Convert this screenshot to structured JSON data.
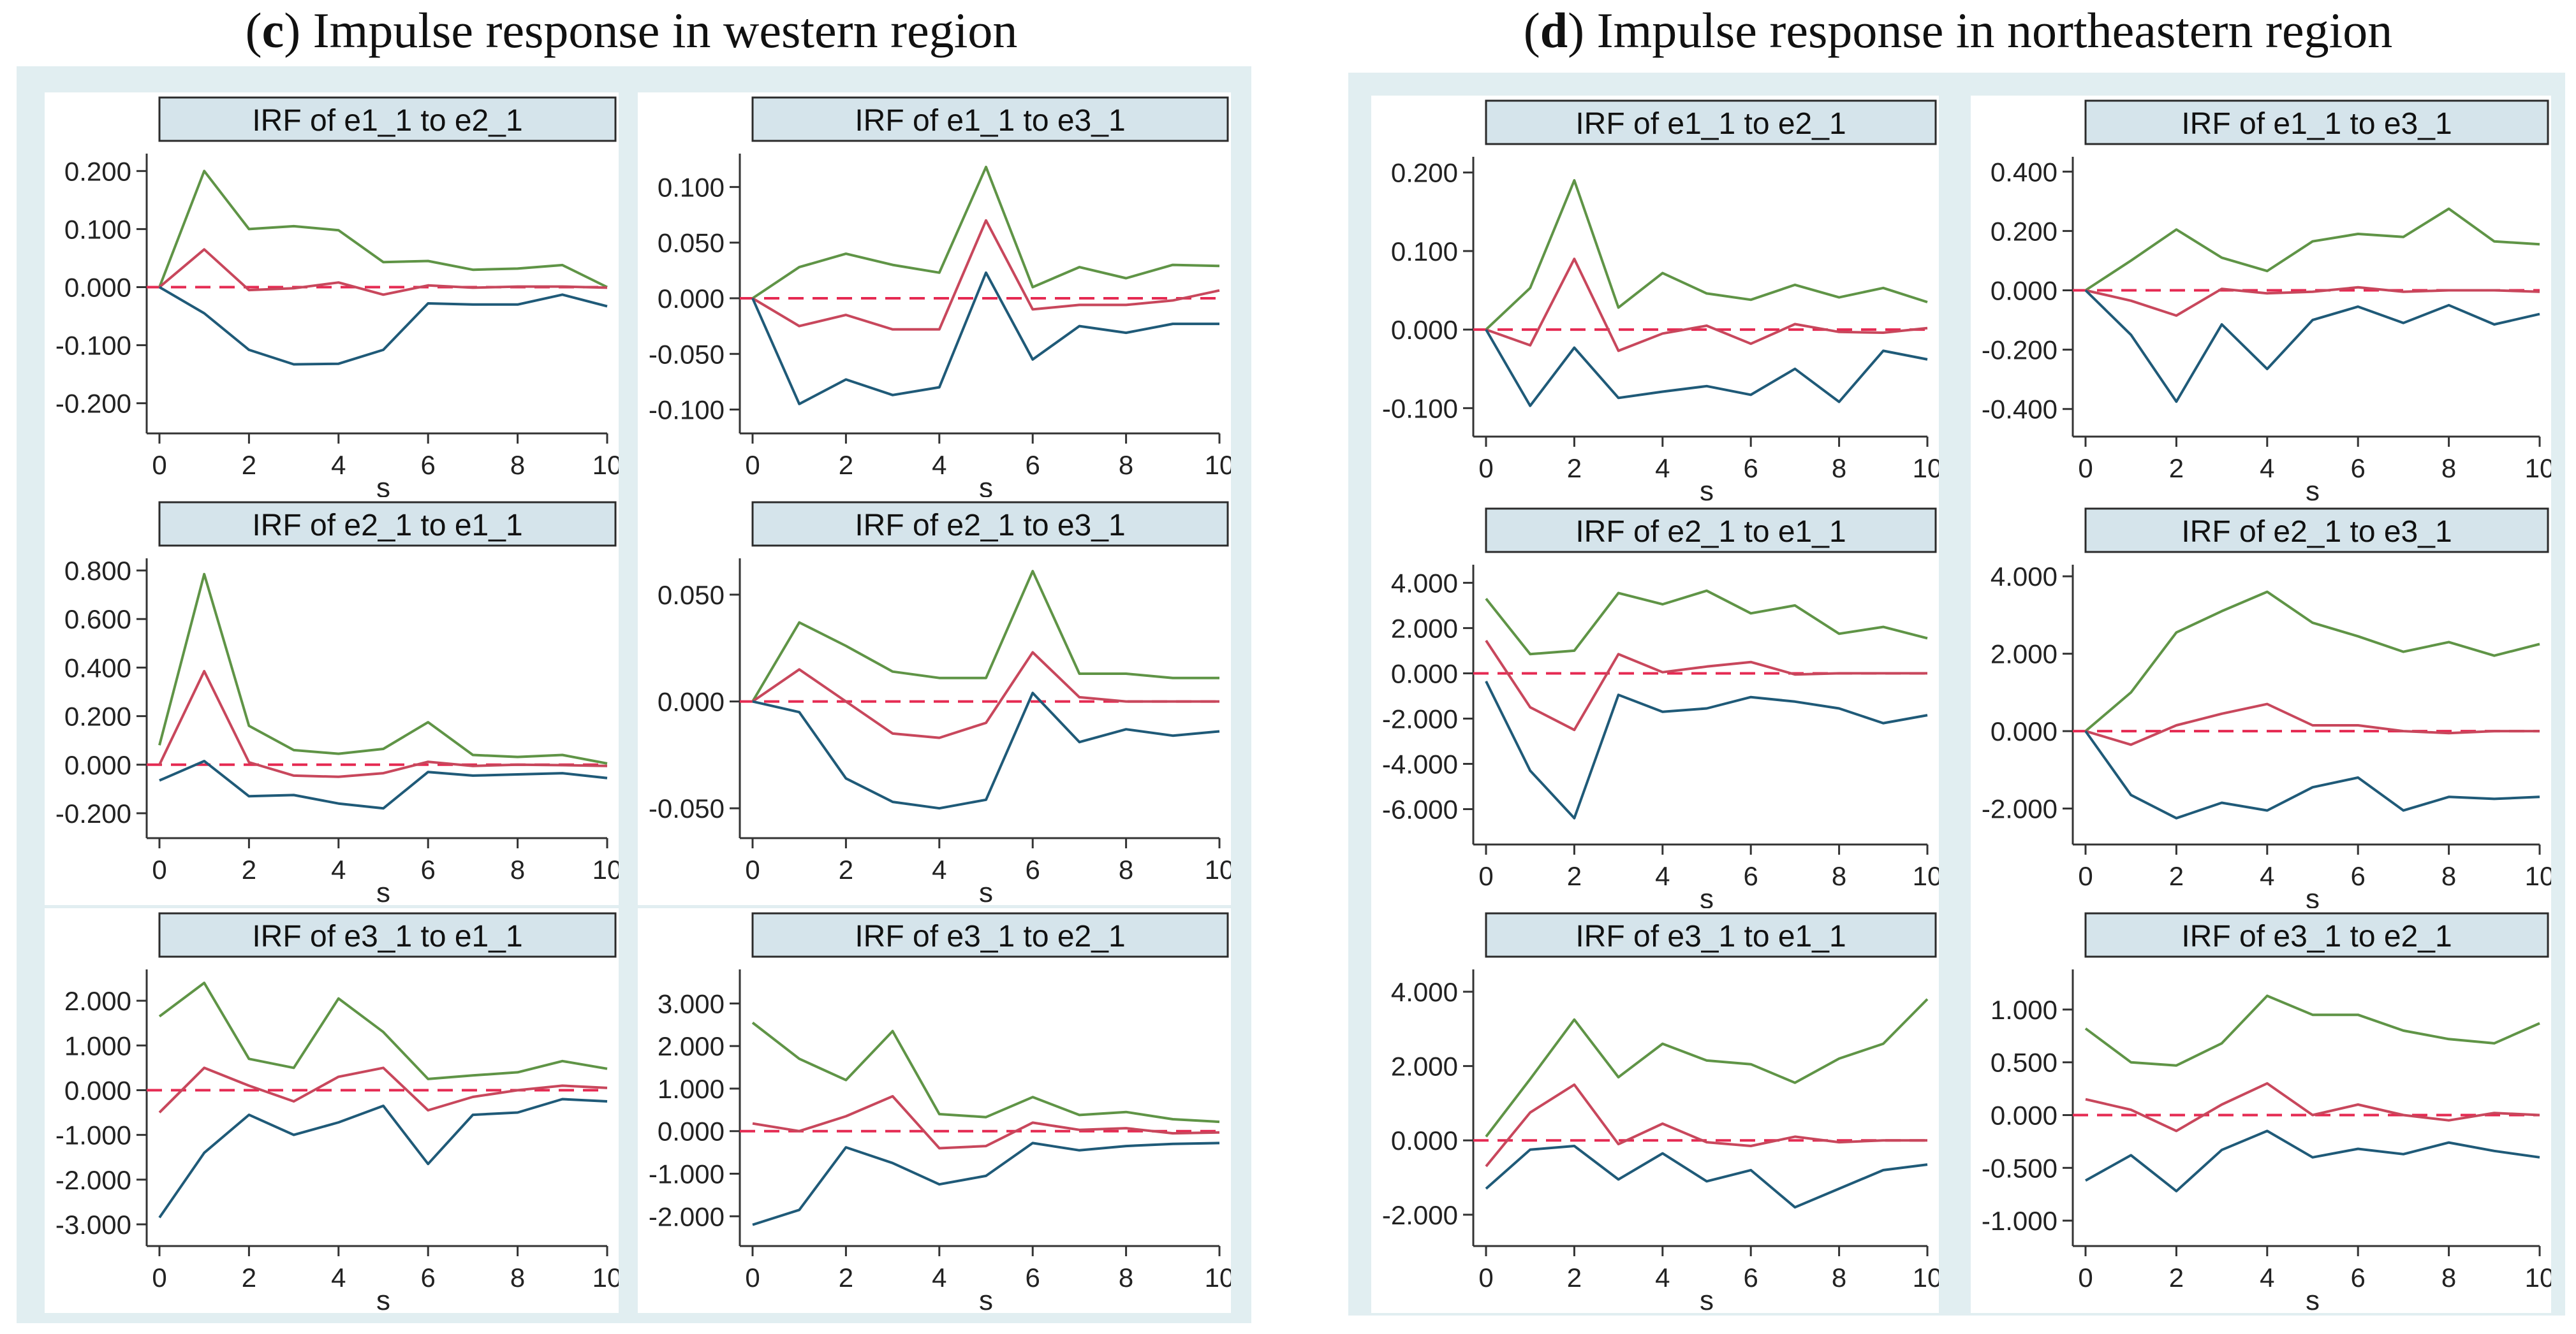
{
  "figure": {
    "panels": [
      {
        "id": "c",
        "letter": "c",
        "title": "Impulse response in western region"
      },
      {
        "id": "d",
        "letter": "d",
        "title": "Impulse response in northeastern region"
      }
    ]
  },
  "colors": {
    "panel_bg": "#e1eef1",
    "subplot_bg": "#ffffff",
    "header_bg": "#d5e4eb",
    "upper": "#5f9446",
    "irf": "#c8475c",
    "lower": "#1f5a78",
    "zero_line": "#e52a52",
    "axis": "#333333"
  },
  "chart_data": [
    {
      "id": "c-1",
      "panel": "c",
      "type": "line",
      "title": "IRF of e1_1 to e2_1",
      "xlabel": "s",
      "ylabel": "",
      "x": [
        0,
        1,
        2,
        3,
        4,
        5,
        6,
        7,
        8,
        9,
        10
      ],
      "xticks": [
        "0",
        "2",
        "4",
        "6",
        "8",
        "10"
      ],
      "ylim": [
        -0.23,
        0.23
      ],
      "yticks": [
        "-0.200",
        "-0.100",
        "0.000",
        "0.100",
        "0.200"
      ],
      "series": [
        {
          "name": "upper",
          "values": [
            0,
            0.2,
            0.1,
            0.105,
            0.098,
            0.043,
            0.045,
            0.03,
            0.032,
            0.038,
            0.0
          ]
        },
        {
          "name": "irf",
          "values": [
            0,
            0.065,
            -0.005,
            -0.002,
            0.008,
            -0.013,
            0.003,
            -0.001,
            0.001,
            0.001,
            -0.001
          ]
        },
        {
          "name": "lower",
          "values": [
            0,
            -0.045,
            -0.108,
            -0.133,
            -0.132,
            -0.108,
            -0.028,
            -0.03,
            -0.03,
            -0.013,
            -0.033
          ]
        }
      ]
    },
    {
      "id": "c-2",
      "panel": "c",
      "type": "line",
      "title": "IRF of e1_1 to e3_1",
      "xlabel": "s",
      "ylabel": "",
      "x": [
        0,
        1,
        2,
        3,
        4,
        5,
        6,
        7,
        8,
        9,
        10
      ],
      "xticks": [
        "0",
        "2",
        "4",
        "6",
        "8",
        "10"
      ],
      "ylim": [
        -0.11,
        0.13
      ],
      "yticks": [
        "-0.100",
        "-0.050",
        "0.000",
        "0.050",
        "0.100"
      ],
      "series": [
        {
          "name": "upper",
          "values": [
            0,
            0.028,
            0.04,
            0.03,
            0.023,
            0.118,
            0.01,
            0.028,
            0.018,
            0.03,
            0.029
          ]
        },
        {
          "name": "irf",
          "values": [
            0,
            -0.025,
            -0.015,
            -0.028,
            -0.028,
            0.07,
            -0.01,
            -0.006,
            -0.006,
            -0.002,
            0.007
          ]
        },
        {
          "name": "lower",
          "values": [
            0,
            -0.095,
            -0.073,
            -0.087,
            -0.08,
            0.023,
            -0.055,
            -0.025,
            -0.031,
            -0.023,
            -0.023
          ]
        }
      ]
    },
    {
      "id": "c-3",
      "panel": "c",
      "type": "line",
      "title": "IRF of e2_1 to e1_1",
      "xlabel": "s",
      "ylabel": "",
      "x": [
        0,
        1,
        2,
        3,
        4,
        5,
        6,
        7,
        8,
        9,
        10
      ],
      "xticks": [
        "0",
        "2",
        "4",
        "6",
        "8",
        "10"
      ],
      "ylim": [
        -0.25,
        0.85
      ],
      "yticks": [
        "-0.200",
        "0.000",
        "0.200",
        "0.400",
        "0.600",
        "0.800"
      ],
      "series": [
        {
          "name": "upper",
          "values": [
            0.08,
            0.785,
            0.16,
            0.06,
            0.045,
            0.065,
            0.175,
            0.04,
            0.032,
            0.04,
            0.005
          ]
        },
        {
          "name": "irf",
          "values": [
            0,
            0.385,
            0.01,
            -0.045,
            -0.05,
            -0.035,
            0.012,
            -0.005,
            0.0,
            -0.002,
            -0.005
          ]
        },
        {
          "name": "lower",
          "values": [
            -0.065,
            0.015,
            -0.13,
            -0.125,
            -0.16,
            -0.18,
            -0.03,
            -0.045,
            -0.04,
            -0.035,
            -0.055
          ]
        }
      ]
    },
    {
      "id": "c-4",
      "panel": "c",
      "type": "line",
      "title": "IRF of e2_1 to e3_1",
      "xlabel": "s",
      "ylabel": "",
      "x": [
        0,
        1,
        2,
        3,
        4,
        5,
        6,
        7,
        8,
        9,
        10
      ],
      "xticks": [
        "0",
        "2",
        "4",
        "6",
        "8",
        "10"
      ],
      "ylim": [
        -0.058,
        0.067
      ],
      "yticks": [
        "-0.050",
        "0.000",
        "0.050"
      ],
      "series": [
        {
          "name": "upper",
          "values": [
            0,
            0.037,
            0.026,
            0.014,
            0.011,
            0.011,
            0.061,
            0.013,
            0.013,
            0.011,
            0.011
          ]
        },
        {
          "name": "irf",
          "values": [
            0,
            0.015,
            0.0,
            -0.015,
            -0.017,
            -0.01,
            0.023,
            0.002,
            0.0,
            0.0,
            0.0
          ]
        },
        {
          "name": "lower",
          "values": [
            0,
            -0.005,
            -0.036,
            -0.047,
            -0.05,
            -0.046,
            0.004,
            -0.019,
            -0.013,
            -0.016,
            -0.014
          ]
        }
      ]
    },
    {
      "id": "c-5",
      "panel": "c",
      "type": "line",
      "title": "IRF of e3_1 to e1_1",
      "xlabel": "s",
      "ylabel": "",
      "x": [
        0,
        1,
        2,
        3,
        4,
        5,
        6,
        7,
        8,
        9,
        10
      ],
      "xticks": [
        "0",
        "2",
        "4",
        "6",
        "8",
        "10"
      ],
      "ylim": [
        -3.2,
        2.7
      ],
      "yticks": [
        "-3.000",
        "-2.000",
        "-1.000",
        "0.000",
        "1.000",
        "2.000"
      ],
      "series": [
        {
          "name": "upper",
          "values": [
            1.65,
            2.4,
            0.7,
            0.5,
            2.05,
            1.3,
            0.25,
            0.33,
            0.4,
            0.65,
            0.48
          ]
        },
        {
          "name": "irf",
          "values": [
            -0.5,
            0.5,
            0.1,
            -0.25,
            0.3,
            0.5,
            -0.45,
            -0.15,
            0.0,
            0.1,
            0.05
          ]
        },
        {
          "name": "lower",
          "values": [
            -2.85,
            -1.4,
            -0.55,
            -1.0,
            -0.72,
            -0.35,
            -1.65,
            -0.55,
            -0.5,
            -0.2,
            -0.25
          ]
        }
      ]
    },
    {
      "id": "c-6",
      "panel": "c",
      "type": "line",
      "title": "IRF of e3_1 to e2_1",
      "xlabel": "s",
      "ylabel": "",
      "x": [
        0,
        1,
        2,
        3,
        4,
        5,
        6,
        7,
        8,
        9,
        10
      ],
      "xticks": [
        "0",
        "2",
        "4",
        "6",
        "8",
        "10"
      ],
      "ylim": [
        -2.4,
        3.8
      ],
      "yticks": [
        "-2.000",
        "-1.000",
        "0.000",
        "1.000",
        "2.000",
        "3.000"
      ],
      "series": [
        {
          "name": "upper",
          "values": [
            2.55,
            1.7,
            1.2,
            2.35,
            0.4,
            0.33,
            0.8,
            0.38,
            0.45,
            0.28,
            0.22
          ]
        },
        {
          "name": "irf",
          "values": [
            0.18,
            0.0,
            0.35,
            0.82,
            -0.4,
            -0.35,
            0.2,
            0.03,
            0.07,
            -0.05,
            -0.03
          ]
        },
        {
          "name": "lower",
          "values": [
            -2.2,
            -1.85,
            -0.38,
            -0.75,
            -1.25,
            -1.05,
            -0.28,
            -0.45,
            -0.35,
            -0.3,
            -0.28
          ]
        }
      ]
    },
    {
      "id": "d-1",
      "panel": "d",
      "type": "line",
      "title": "IRF of e1_1 to e2_1",
      "xlabel": "s",
      "ylabel": "",
      "x": [
        0,
        1,
        2,
        3,
        4,
        5,
        6,
        7,
        8,
        9,
        10
      ],
      "xticks": [
        "0",
        "2",
        "4",
        "6",
        "8",
        "10"
      ],
      "ylim": [
        -0.12,
        0.22
      ],
      "yticks": [
        "-0.100",
        "0.000",
        "0.100",
        "0.200"
      ],
      "series": [
        {
          "name": "upper",
          "values": [
            0,
            0.053,
            0.19,
            0.028,
            0.072,
            0.046,
            0.038,
            0.057,
            0.041,
            0.053,
            0.035
          ]
        },
        {
          "name": "irf",
          "values": [
            0,
            -0.02,
            0.09,
            -0.027,
            -0.005,
            0.005,
            -0.018,
            0.007,
            -0.003,
            -0.004,
            0.002
          ]
        },
        {
          "name": "lower",
          "values": [
            0,
            -0.097,
            -0.023,
            -0.087,
            -0.079,
            -0.072,
            -0.083,
            -0.05,
            -0.092,
            -0.027,
            -0.038
          ]
        }
      ]
    },
    {
      "id": "d-2",
      "panel": "d",
      "type": "line",
      "title": "IRF of e1_1 to e3_1",
      "xlabel": "s",
      "ylabel": "",
      "x": [
        0,
        1,
        2,
        3,
        4,
        5,
        6,
        7,
        8,
        9,
        10
      ],
      "xticks": [
        "0",
        "2",
        "4",
        "6",
        "8",
        "10"
      ],
      "ylim": [
        -0.45,
        0.45
      ],
      "yticks": [
        "-0.400",
        "-0.200",
        "0.000",
        "0.200",
        "0.400"
      ],
      "series": [
        {
          "name": "upper",
          "values": [
            0,
            0.1,
            0.205,
            0.11,
            0.065,
            0.165,
            0.19,
            0.18,
            0.275,
            0.165,
            0.155
          ]
        },
        {
          "name": "irf",
          "values": [
            0,
            -0.035,
            -0.085,
            0.005,
            -0.01,
            -0.005,
            0.01,
            -0.005,
            0.0,
            0.0,
            -0.005
          ]
        },
        {
          "name": "lower",
          "values": [
            0,
            -0.15,
            -0.375,
            -0.115,
            -0.265,
            -0.1,
            -0.055,
            -0.11,
            -0.05,
            -0.115,
            -0.08
          ]
        }
      ]
    },
    {
      "id": "d-3",
      "panel": "d",
      "type": "line",
      "title": "IRF of e2_1 to e1_1",
      "xlabel": "s",
      "ylabel": "",
      "x": [
        0,
        1,
        2,
        3,
        4,
        5,
        6,
        7,
        8,
        9,
        10
      ],
      "xticks": [
        "0",
        "2",
        "4",
        "6",
        "8",
        "10"
      ],
      "ylim": [
        -7.0,
        4.8
      ],
      "yticks": [
        "-6.000",
        "-4.000",
        "-2.000",
        "0.000",
        "2.000",
        "4.000"
      ],
      "series": [
        {
          "name": "upper",
          "values": [
            3.3,
            0.85,
            1.0,
            3.55,
            3.05,
            3.65,
            2.65,
            3.0,
            1.75,
            2.05,
            1.55
          ]
        },
        {
          "name": "irf",
          "values": [
            1.45,
            -1.5,
            -2.5,
            0.85,
            0.05,
            0.3,
            0.5,
            -0.05,
            0.0,
            0.0,
            0.0
          ]
        },
        {
          "name": "lower",
          "values": [
            -0.35,
            -4.3,
            -6.4,
            -0.95,
            -1.7,
            -1.55,
            -1.05,
            -1.25,
            -1.55,
            -2.2,
            -1.85
          ]
        }
      ]
    },
    {
      "id": "d-4",
      "panel": "d",
      "type": "line",
      "title": "IRF of e2_1 to e3_1",
      "xlabel": "s",
      "ylabel": "",
      "x": [
        0,
        1,
        2,
        3,
        4,
        5,
        6,
        7,
        8,
        9,
        10
      ],
      "xticks": [
        "0",
        "2",
        "4",
        "6",
        "8",
        "10"
      ],
      "ylim": [
        -2.6,
        4.3
      ],
      "yticks": [
        "-2.000",
        "0.000",
        "2.000",
        "4.000"
      ],
      "series": [
        {
          "name": "upper",
          "values": [
            0,
            1.0,
            2.55,
            3.1,
            3.6,
            2.8,
            2.45,
            2.05,
            2.3,
            1.95,
            2.25
          ]
        },
        {
          "name": "irf",
          "values": [
            0,
            -0.35,
            0.15,
            0.45,
            0.7,
            0.15,
            0.15,
            0.0,
            -0.05,
            0.0,
            0.0
          ]
        },
        {
          "name": "lower",
          "values": [
            0,
            -1.65,
            -2.25,
            -1.85,
            -2.05,
            -1.45,
            -1.2,
            -2.05,
            -1.7,
            -1.75,
            -1.7
          ]
        }
      ]
    },
    {
      "id": "d-5",
      "panel": "d",
      "type": "line",
      "title": "IRF of e3_1 to e1_1",
      "xlabel": "s",
      "ylabel": "",
      "x": [
        0,
        1,
        2,
        3,
        4,
        5,
        6,
        7,
        8,
        9,
        10
      ],
      "xticks": [
        "0",
        "2",
        "4",
        "6",
        "8",
        "10"
      ],
      "ylim": [
        -2.5,
        4.6
      ],
      "yticks": [
        "-2.000",
        "0.000",
        "2.000",
        "4.000"
      ],
      "series": [
        {
          "name": "upper",
          "values": [
            0.1,
            1.65,
            3.25,
            1.7,
            2.6,
            2.15,
            2.05,
            1.55,
            2.2,
            2.6,
            3.8
          ]
        },
        {
          "name": "irf",
          "values": [
            -0.7,
            0.75,
            1.5,
            -0.1,
            0.45,
            -0.05,
            -0.15,
            0.1,
            -0.05,
            0.0,
            0.0
          ]
        },
        {
          "name": "lower",
          "values": [
            -1.3,
            -0.25,
            -0.15,
            -1.05,
            -0.35,
            -1.1,
            -0.8,
            -1.8,
            -1.3,
            -0.8,
            -0.65
          ]
        }
      ]
    },
    {
      "id": "d-6",
      "panel": "d",
      "type": "line",
      "title": "IRF of e3_1 to e2_1",
      "xlabel": "s",
      "ylabel": "",
      "x": [
        0,
        1,
        2,
        3,
        4,
        5,
        6,
        7,
        8,
        9,
        10
      ],
      "xticks": [
        "0",
        "2",
        "4",
        "6",
        "8",
        "10"
      ],
      "ylim": [
        -1.12,
        1.38
      ],
      "yticks": [
        "-1.000",
        "-0.500",
        "0.000",
        "0.500",
        "1.000"
      ],
      "series": [
        {
          "name": "upper",
          "values": [
            0.82,
            0.5,
            0.47,
            0.68,
            1.13,
            0.95,
            0.95,
            0.8,
            0.72,
            0.68,
            0.87
          ]
        },
        {
          "name": "irf",
          "values": [
            0.15,
            0.05,
            -0.15,
            0.1,
            0.3,
            0.0,
            0.1,
            0.0,
            -0.05,
            0.02,
            0.0
          ]
        },
        {
          "name": "lower",
          "values": [
            -0.62,
            -0.38,
            -0.72,
            -0.33,
            -0.15,
            -0.4,
            -0.32,
            -0.37,
            -0.26,
            -0.34,
            -0.4
          ]
        }
      ]
    }
  ]
}
